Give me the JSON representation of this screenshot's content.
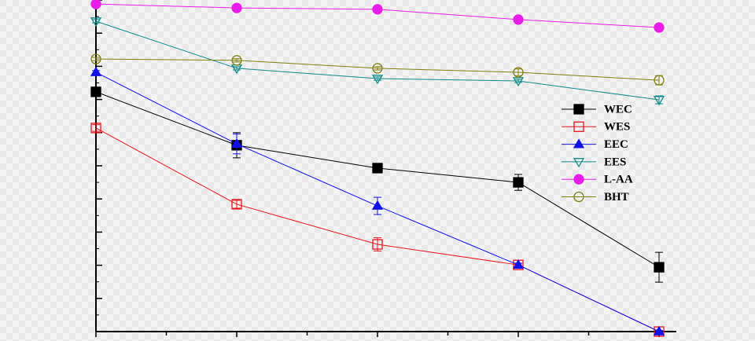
{
  "chart_data": {
    "type": "line",
    "x": [
      0,
      1,
      2,
      3,
      4
    ],
    "xlim": [
      0,
      4
    ],
    "xticks": [
      0,
      0.5,
      1,
      1.5,
      2,
      2.5,
      3,
      3.5,
      4
    ],
    "ylim": [
      0,
      100
    ],
    "yticks": [
      0,
      10,
      20,
      30,
      40,
      50,
      60,
      70,
      80,
      90,
      100
    ],
    "legend": "right",
    "series": [
      {
        "name": "WEC",
        "color": "#000000",
        "marker": "square",
        "filled": true,
        "values": [
          72.3,
          56.2,
          49.3,
          45.0,
          19.4
        ],
        "errors": [
          0.5,
          3.8,
          0.5,
          2.4,
          4.5
        ]
      },
      {
        "name": "WES",
        "color": "#e8141c",
        "marker": "square",
        "filled": false,
        "values": [
          61.4,
          38.4,
          26.3,
          20.1,
          0
        ],
        "errors": [
          1.0,
          1.2,
          2.0,
          0.5,
          0.3
        ]
      },
      {
        "name": "EEC",
        "color": "#1010e8",
        "marker": "triangle",
        "filled": true,
        "values": [
          78.2,
          56.6,
          37.9,
          20.1,
          0
        ],
        "errors": [
          0.5,
          3.0,
          2.6,
          0.5,
          0.3
        ]
      },
      {
        "name": "EES",
        "color": "#108a8a",
        "marker": "triangle-down",
        "filled": false,
        "values": [
          93.6,
          79.4,
          76.3,
          75.6,
          69.9
        ],
        "errors": [
          0.5,
          0.5,
          0.5,
          0.5,
          1.2
        ]
      },
      {
        "name": "L-AA",
        "color": "#e81ee8",
        "marker": "circle",
        "filled": true,
        "values": [
          98.8,
          97.6,
          97.2,
          94.1,
          91.7
        ],
        "errors": [
          0.3,
          0.3,
          0.3,
          0.3,
          0.3
        ]
      },
      {
        "name": "BHT",
        "color": "#808010",
        "marker": "circle",
        "filled": false,
        "values": [
          82.2,
          81.8,
          79.4,
          78.2,
          75.8
        ],
        "errors": [
          0.5,
          0.5,
          0.5,
          1.0,
          1.4
        ]
      }
    ]
  }
}
